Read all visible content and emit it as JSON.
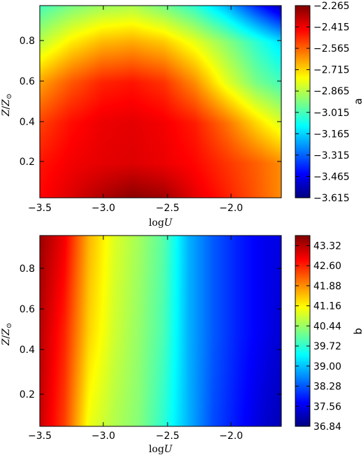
{
  "chart_data": [
    {
      "type": "heatmap",
      "panel": "top",
      "xlabel": "logU",
      "ylabel": "Z/Z⊙",
      "xlim": [
        -3.5,
        -1.55
      ],
      "ylim": [
        0.03,
        0.98
      ],
      "xticks": [
        -3.5,
        -3.0,
        -2.5,
        -2.0
      ],
      "xtick_labels": [
        "−3.5",
        "−3.0",
        "−2.5",
        "−2.0"
      ],
      "yticks": [
        0.2,
        0.4,
        0.6,
        0.8
      ],
      "ytick_labels": [
        "0.2",
        "0.4",
        "0.6",
        "0.8"
      ],
      "colorbar": {
        "label": "a",
        "colormap": "jet",
        "vmin": -3.615,
        "vmax": -2.265,
        "ticks": [
          -2.265,
          -2.415,
          -2.565,
          -2.715,
          -2.865,
          -3.015,
          -3.165,
          -3.315,
          -3.465,
          -3.615
        ],
        "tick_labels": [
          "−2.265",
          "−2.415",
          "−2.565",
          "−2.715",
          "−2.865",
          "−3.015",
          "−3.165",
          "−3.315",
          "−3.465",
          "−3.615"
        ]
      },
      "x": [
        -3.5,
        -3.25,
        -3.0,
        -2.75,
        -2.5,
        -2.25,
        -2.0,
        -1.75,
        -1.55
      ],
      "y": [
        0.03,
        0.2,
        0.4,
        0.6,
        0.8,
        0.98
      ],
      "z": [
        [
          -2.44,
          -2.39,
          -2.33,
          -2.28,
          -2.31,
          -2.4,
          -2.47,
          -2.55,
          -2.62
        ],
        [
          -2.46,
          -2.42,
          -2.4,
          -2.39,
          -2.41,
          -2.44,
          -2.5,
          -2.56,
          -2.62
        ],
        [
          -2.52,
          -2.45,
          -2.41,
          -2.4,
          -2.42,
          -2.47,
          -2.58,
          -2.72,
          -2.82
        ],
        [
          -2.65,
          -2.55,
          -2.48,
          -2.46,
          -2.5,
          -2.62,
          -2.8,
          -2.95,
          -3.02
        ],
        [
          -2.86,
          -2.75,
          -2.68,
          -2.66,
          -2.7,
          -2.8,
          -2.92,
          -3.05,
          -3.15
        ],
        [
          -3.02,
          -2.95,
          -2.9,
          -2.88,
          -2.95,
          -3.05,
          -3.2,
          -3.4,
          -3.55
        ]
      ]
    },
    {
      "type": "heatmap",
      "panel": "bottom",
      "xlabel": "logU",
      "ylabel": "Z/Z⊙",
      "xlim": [
        -3.5,
        -1.55
      ],
      "ylim": [
        0.03,
        0.98
      ],
      "xticks": [
        -3.5,
        -3.0,
        -2.5,
        -2.0
      ],
      "xtick_labels": [
        "−3.5",
        "−3.0",
        "−2.5",
        "−2.0"
      ],
      "yticks": [
        0.2,
        0.4,
        0.6,
        0.8
      ],
      "ytick_labels": [
        "0.2",
        "0.4",
        "0.6",
        "0.8"
      ],
      "colorbar": {
        "label": "b",
        "colormap": "jet",
        "vmin": 36.84,
        "vmax": 43.68,
        "ticks": [
          43.32,
          42.6,
          41.88,
          41.16,
          40.44,
          39.72,
          39.0,
          38.28,
          37.56,
          36.84
        ],
        "tick_labels": [
          "43.32",
          "42.60",
          "41.88",
          "41.16",
          "40.44",
          "39.72",
          "39.00",
          "38.28",
          "37.56",
          "36.84"
        ]
      },
      "x": [
        -3.5,
        -3.3,
        -3.1,
        -2.9,
        -2.7,
        -2.5,
        -2.3,
        -2.1,
        -1.9,
        -1.7,
        -1.55
      ],
      "y": [
        0.03,
        0.5,
        0.98
      ],
      "z": [
        [
          43.2,
          42.4,
          41.0,
          40.6,
          40.3,
          39.7,
          38.9,
          38.2,
          37.8,
          37.4,
          37.2
        ],
        [
          43.3,
          42.6,
          41.4,
          40.8,
          40.4,
          39.9,
          38.9,
          38.3,
          37.9,
          37.6,
          37.4
        ],
        [
          43.5,
          42.9,
          41.6,
          40.9,
          40.5,
          40.0,
          38.9,
          38.3,
          37.9,
          37.6,
          37.5
        ]
      ]
    }
  ]
}
